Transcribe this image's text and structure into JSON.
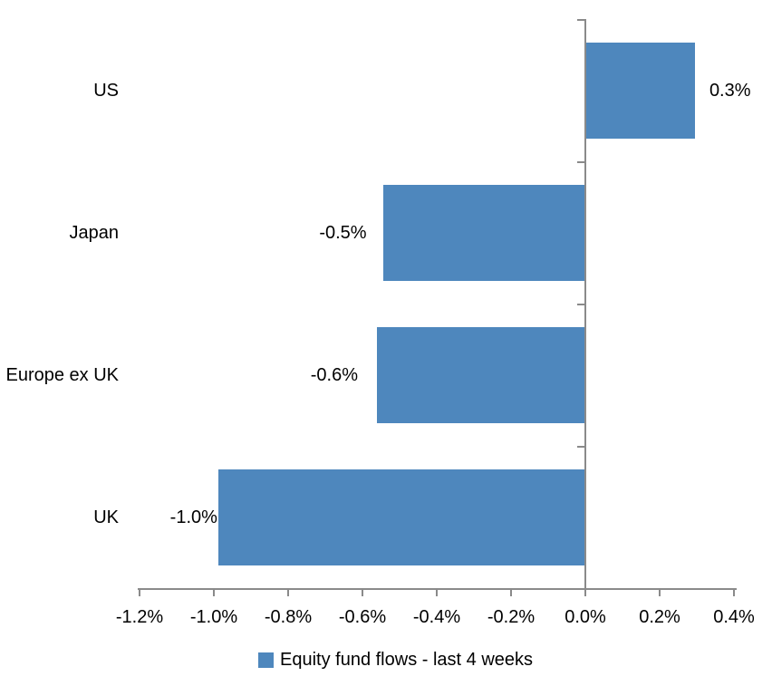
{
  "chart_data": {
    "type": "bar",
    "orientation": "horizontal",
    "title": "",
    "categories": [
      "US",
      "Japan",
      "Europe ex UK",
      "UK"
    ],
    "values": [
      0.3,
      -0.5,
      -0.6,
      -1.0
    ],
    "values_precise_pct": [
      0.295,
      -0.545,
      -0.561,
      -0.988
    ],
    "data_labels": [
      "0.3%",
      "-0.5%",
      "-0.6%",
      "-1.0%"
    ],
    "x_tick_labels": [
      "-1.2%",
      "-1.0%",
      "-0.8%",
      "-0.6%",
      "-0.4%",
      "-0.2%",
      "0.0%",
      "0.2%",
      "0.4%"
    ],
    "x_tick_values": [
      -1.2,
      -1.0,
      -0.8,
      -0.6,
      -0.4,
      -0.2,
      0.0,
      0.2,
      0.4
    ],
    "xlim": [
      -1.2,
      0.4
    ],
    "xlabel": "",
    "ylabel": "",
    "grid": false,
    "legend_position": "bottom",
    "legend": [
      {
        "label": "Equity fund flows - last 4 weeks",
        "color": "#4e87bd"
      }
    ],
    "colors": {
      "bar": "#4e87bd",
      "axis": "#8a8a8a",
      "text": "#000000",
      "background": "#ffffff"
    }
  }
}
